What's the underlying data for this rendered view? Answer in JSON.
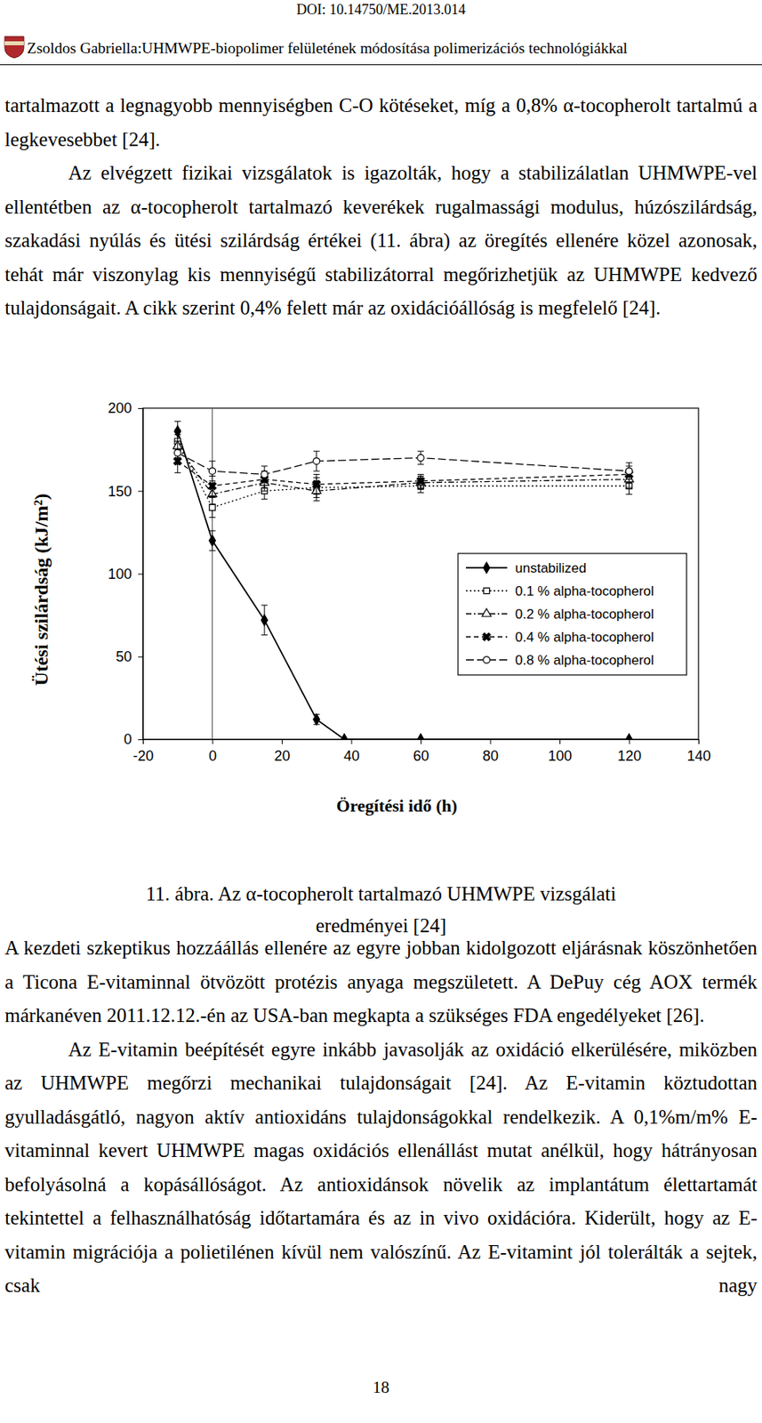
{
  "header": {
    "doi": "DOI: 10.14750/ME.2013.014",
    "running_title": "Zsoldos Gabriella:UHMWPE-biopolimer felületének módosítása polimerizációs technológiákkal"
  },
  "paragraphs_before": [
    "tartalmazott a legnagyobb mennyiségben C-O kötéseket, míg a 0,8% α-tocopherolt tartalmú a legkevesebbet [24].",
    "Az elvégzett fizikai vizsgálatok is igazolták, hogy a stabilizálatlan UHMWPE-vel ellentétben az α-tocopherolt tartalmazó keverékek rugalmassági modulus, húzószilárdság, szakadási nyúlás és ütési szilárdság értékei (11. ábra) az öregítés ellenére közel azonosak, tehát már viszonylag kis mennyiségű stabilizátorral megőrizhetjük az UHMWPE kedvező tulajdonságait. A cikk szerint 0,4% felett már az oxidációállóság is megfelelő [24]."
  ],
  "chart_data": {
    "type": "line",
    "x_label": "Öregítési idő (h)",
    "y_label": "Ütési szilárdság (kJ/m²)",
    "xlim": [
      -20,
      140
    ],
    "xticks": [
      -20,
      0,
      20,
      40,
      60,
      80,
      100,
      120,
      140
    ],
    "ylim": [
      0,
      200
    ],
    "yticks": [
      0,
      50,
      100,
      150,
      200
    ],
    "grid": false,
    "legend": "right",
    "vlines": [
      0
    ],
    "series": [
      {
        "name": "unstabilized",
        "color": "#000000",
        "marker": "filled-diamond",
        "line_style": "solid",
        "x": [
          -10,
          0,
          15,
          30,
          38,
          60,
          120
        ],
        "values": [
          186,
          120,
          72,
          12,
          0,
          0,
          0
        ],
        "errors": [
          6,
          6,
          9,
          3,
          0,
          0,
          0
        ]
      },
      {
        "name": "0.1 % alpha-tocopherol",
        "color": "#000000",
        "marker": "open-square",
        "line_style": "dotted",
        "x": [
          -10,
          0,
          15,
          30,
          60,
          120
        ],
        "values": [
          180,
          140,
          150,
          152,
          153,
          153
        ],
        "errors": [
          7,
          6,
          5,
          6,
          4,
          5
        ]
      },
      {
        "name": "0.2 % alpha-tocopherol",
        "color": "#000000",
        "marker": "open-triangle",
        "line_style": "dashdot",
        "x": [
          -10,
          0,
          15,
          30,
          60,
          120
        ],
        "values": [
          177,
          148,
          155,
          150,
          155,
          157
        ],
        "errors": [
          7,
          6,
          5,
          6,
          4,
          5
        ]
      },
      {
        "name": "0.4 % alpha-tocopherol",
        "color": "#000000",
        "marker": "x",
        "line_style": "dashed",
        "x": [
          -10,
          0,
          15,
          30,
          60,
          120
        ],
        "values": [
          168,
          153,
          157,
          154,
          156,
          160
        ],
        "errors": [
          7,
          6,
          5,
          6,
          4,
          5
        ]
      },
      {
        "name": "0.8 % alpha-tocopherol",
        "color": "#000000",
        "marker": "open-circle",
        "line_style": "longdash",
        "x": [
          -10,
          0,
          15,
          30,
          60,
          120
        ],
        "values": [
          173,
          162,
          160,
          168,
          170,
          162
        ],
        "errors": [
          7,
          6,
          5,
          6,
          4,
          5
        ]
      }
    ]
  },
  "caption": "11. ábra. Az α-tocopherolt tartalmazó UHMWPE vizsgálati eredményei [24]",
  "paragraphs_after": [
    "A kezdeti szkeptikus hozzáállás ellenére az egyre jobban kidolgozott eljárásnak köszönhetően a Ticona E-vitaminnal ötvözött protézis anyaga megszületett. A DePuy cég AOX termék márkanéven 2011.12.12.-én az USA-ban megkapta a szükséges FDA engedélyeket [26].",
    "Az E-vitamin beépítését egyre inkább javasolják az oxidáció elkerülésére, miközben az UHMWPE megőrzi mechanikai tulajdonságait [24]. Az E-vitamin köztudottan gyulladásgátló, nagyon aktív antioxidáns tulajdonságokkal rendelkezik. A 0,1%m/m% E-vitaminnal kevert UHMWPE magas oxidációs ellenállást mutat anélkül, hogy hátrányosan befolyásolná a kopásállóságot. Az antioxidánsok növelik az implantátum élettartamát tekintettel a felhasználhatóság időtartamára és az in vivo oxidációra. Kiderült, hogy az E-vitamin migrációja a polietilénen kívül nem valószínű. Az E-vitamint jól tolerálták a sejtek, csak nagy"
  ],
  "page_number": 18
}
